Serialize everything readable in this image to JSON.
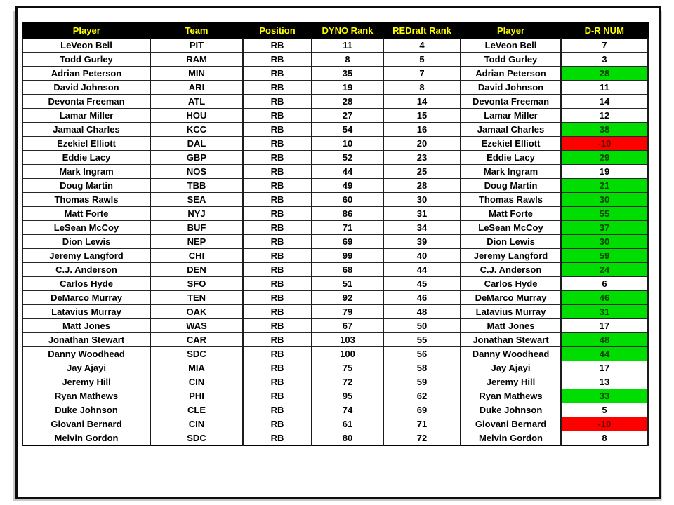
{
  "colors": {
    "header_bg": "#000000",
    "header_text": "#ffff00",
    "green_highlight": "#00dd00",
    "red_highlight": "#ff0000",
    "row_bg": "#ffffff",
    "row_text": "#000000"
  },
  "table": {
    "columns": [
      "Player",
      "Team",
      "Position",
      "DYNO Rank",
      "REDraft Rank",
      "Player",
      "D-R NUM"
    ],
    "rows": [
      {
        "player": "LeVeon Bell",
        "team": "PIT",
        "position": "RB",
        "dyno_rank": "11",
        "redraft_rank": "4",
        "player_2": "LeVeon Bell",
        "dr_num": "7",
        "dr_highlight": "none"
      },
      {
        "player": "Todd Gurley",
        "team": "RAM",
        "position": "RB",
        "dyno_rank": "8",
        "redraft_rank": "5",
        "player_2": "Todd Gurley",
        "dr_num": "3",
        "dr_highlight": "none"
      },
      {
        "player": "Adrian Peterson",
        "team": "MIN",
        "position": "RB",
        "dyno_rank": "35",
        "redraft_rank": "7",
        "player_2": "Adrian Peterson",
        "dr_num": "28",
        "dr_highlight": "green"
      },
      {
        "player": "David Johnson",
        "team": "ARI",
        "position": "RB",
        "dyno_rank": "19",
        "redraft_rank": "8",
        "player_2": "David Johnson",
        "dr_num": "11",
        "dr_highlight": "none"
      },
      {
        "player": "Devonta Freeman",
        "team": "ATL",
        "position": "RB",
        "dyno_rank": "28",
        "redraft_rank": "14",
        "player_2": "Devonta Freeman",
        "dr_num": "14",
        "dr_highlight": "none"
      },
      {
        "player": "Lamar Miller",
        "team": "HOU",
        "position": "RB",
        "dyno_rank": "27",
        "redraft_rank": "15",
        "player_2": "Lamar Miller",
        "dr_num": "12",
        "dr_highlight": "none"
      },
      {
        "player": "Jamaal Charles",
        "team": "KCC",
        "position": "RB",
        "dyno_rank": "54",
        "redraft_rank": "16",
        "player_2": "Jamaal Charles",
        "dr_num": "38",
        "dr_highlight": "green"
      },
      {
        "player": "Ezekiel Elliott",
        "team": "DAL",
        "position": "RB",
        "dyno_rank": "10",
        "redraft_rank": "20",
        "player_2": "Ezekiel Elliott",
        "dr_num": "-10",
        "dr_highlight": "red"
      },
      {
        "player": "Eddie Lacy",
        "team": "GBP",
        "position": "RB",
        "dyno_rank": "52",
        "redraft_rank": "23",
        "player_2": "Eddie Lacy",
        "dr_num": "29",
        "dr_highlight": "green"
      },
      {
        "player": "Mark Ingram",
        "team": "NOS",
        "position": "RB",
        "dyno_rank": "44",
        "redraft_rank": "25",
        "player_2": "Mark Ingram",
        "dr_num": "19",
        "dr_highlight": "none"
      },
      {
        "player": "Doug Martin",
        "team": "TBB",
        "position": "RB",
        "dyno_rank": "49",
        "redraft_rank": "28",
        "player_2": "Doug Martin",
        "dr_num": "21",
        "dr_highlight": "green"
      },
      {
        "player": "Thomas Rawls",
        "team": "SEA",
        "position": "RB",
        "dyno_rank": "60",
        "redraft_rank": "30",
        "player_2": "Thomas Rawls",
        "dr_num": "30",
        "dr_highlight": "green"
      },
      {
        "player": "Matt Forte",
        "team": "NYJ",
        "position": "RB",
        "dyno_rank": "86",
        "redraft_rank": "31",
        "player_2": "Matt Forte",
        "dr_num": "55",
        "dr_highlight": "green"
      },
      {
        "player": "LeSean McCoy",
        "team": "BUF",
        "position": "RB",
        "dyno_rank": "71",
        "redraft_rank": "34",
        "player_2": "LeSean McCoy",
        "dr_num": "37",
        "dr_highlight": "green"
      },
      {
        "player": "Dion Lewis",
        "team": "NEP",
        "position": "RB",
        "dyno_rank": "69",
        "redraft_rank": "39",
        "player_2": "Dion Lewis",
        "dr_num": "30",
        "dr_highlight": "green"
      },
      {
        "player": "Jeremy Langford",
        "team": "CHI",
        "position": "RB",
        "dyno_rank": "99",
        "redraft_rank": "40",
        "player_2": "Jeremy Langford",
        "dr_num": "59",
        "dr_highlight": "green"
      },
      {
        "player": "C.J. Anderson",
        "team": "DEN",
        "position": "RB",
        "dyno_rank": "68",
        "redraft_rank": "44",
        "player_2": "C.J. Anderson",
        "dr_num": "24",
        "dr_highlight": "green"
      },
      {
        "player": "Carlos Hyde",
        "team": "SFO",
        "position": "RB",
        "dyno_rank": "51",
        "redraft_rank": "45",
        "player_2": "Carlos Hyde",
        "dr_num": "6",
        "dr_highlight": "none"
      },
      {
        "player": "DeMarco Murray",
        "team": "TEN",
        "position": "RB",
        "dyno_rank": "92",
        "redraft_rank": "46",
        "player_2": "DeMarco Murray",
        "dr_num": "46",
        "dr_highlight": "green"
      },
      {
        "player": "Latavius Murray",
        "team": "OAK",
        "position": "RB",
        "dyno_rank": "79",
        "redraft_rank": "48",
        "player_2": "Latavius Murray",
        "dr_num": "31",
        "dr_highlight": "green"
      },
      {
        "player": "Matt Jones",
        "team": "WAS",
        "position": "RB",
        "dyno_rank": "67",
        "redraft_rank": "50",
        "player_2": "Matt Jones",
        "dr_num": "17",
        "dr_highlight": "none"
      },
      {
        "player": "Jonathan Stewart",
        "team": "CAR",
        "position": "RB",
        "dyno_rank": "103",
        "redraft_rank": "55",
        "player_2": "Jonathan Stewart",
        "dr_num": "48",
        "dr_highlight": "green"
      },
      {
        "player": "Danny Woodhead",
        "team": "SDC",
        "position": "RB",
        "dyno_rank": "100",
        "redraft_rank": "56",
        "player_2": "Danny Woodhead",
        "dr_num": "44",
        "dr_highlight": "green"
      },
      {
        "player": "Jay Ajayi",
        "team": "MIA",
        "position": "RB",
        "dyno_rank": "75",
        "redraft_rank": "58",
        "player_2": "Jay Ajayi",
        "dr_num": "17",
        "dr_highlight": "none"
      },
      {
        "player": "Jeremy Hill",
        "team": "CIN",
        "position": "RB",
        "dyno_rank": "72",
        "redraft_rank": "59",
        "player_2": "Jeremy Hill",
        "dr_num": "13",
        "dr_highlight": "none"
      },
      {
        "player": "Ryan Mathews",
        "team": "PHI",
        "position": "RB",
        "dyno_rank": "95",
        "redraft_rank": "62",
        "player_2": "Ryan Mathews",
        "dr_num": "33",
        "dr_highlight": "green"
      },
      {
        "player": "Duke Johnson",
        "team": "CLE",
        "position": "RB",
        "dyno_rank": "74",
        "redraft_rank": "69",
        "player_2": "Duke Johnson",
        "dr_num": "5",
        "dr_highlight": "none"
      },
      {
        "player": "Giovani Bernard",
        "team": "CIN",
        "position": "RB",
        "dyno_rank": "61",
        "redraft_rank": "71",
        "player_2": "Giovani Bernard",
        "dr_num": "-10",
        "dr_highlight": "red"
      },
      {
        "player": "Melvin Gordon",
        "team": "SDC",
        "position": "RB",
        "dyno_rank": "80",
        "redraft_rank": "72",
        "player_2": "Melvin Gordon",
        "dr_num": "8",
        "dr_highlight": "none"
      }
    ]
  }
}
